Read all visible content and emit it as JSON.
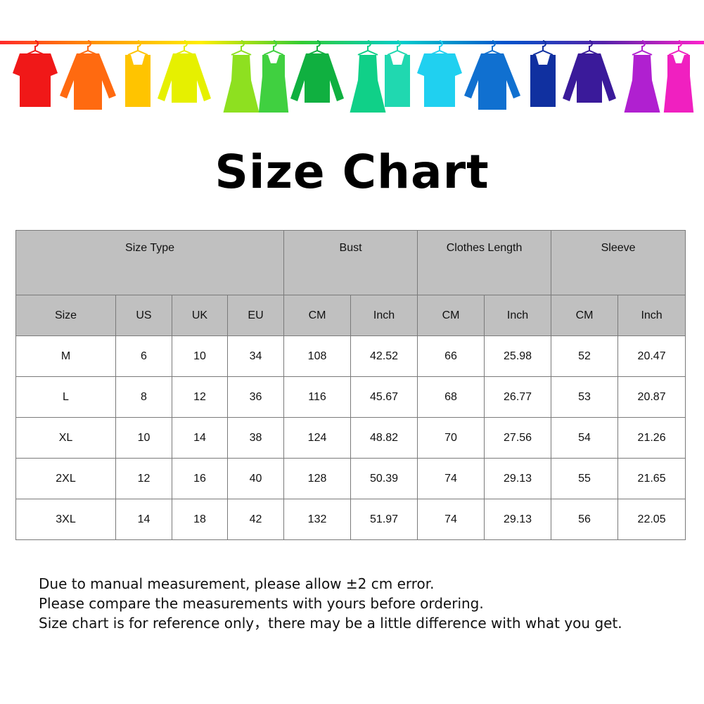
{
  "banner": {
    "rail_colors": [
      "#ff2a2a",
      "#ff9900",
      "#ffee00",
      "#33cc33",
      "#00cccc",
      "#0055cc",
      "#5522aa",
      "#ff22cc"
    ],
    "garments": [
      {
        "type": "tshirt",
        "color": "#f01818"
      },
      {
        "type": "shirt",
        "color": "#ff6a10"
      },
      {
        "type": "tank",
        "color": "#ffc400"
      },
      {
        "type": "sweater",
        "color": "#e6f000"
      },
      {
        "type": "dress",
        "color": "#8ee020"
      },
      {
        "type": "tankdress",
        "color": "#40d040"
      },
      {
        "type": "sweater",
        "color": "#10b040"
      },
      {
        "type": "dress",
        "color": "#10d088"
      },
      {
        "type": "tank",
        "color": "#20d8b0"
      },
      {
        "type": "tshirt",
        "color": "#20d0f0"
      },
      {
        "type": "shirt",
        "color": "#1070d0"
      },
      {
        "type": "tank",
        "color": "#1030a0"
      },
      {
        "type": "sweater",
        "color": "#3a1a9a"
      },
      {
        "type": "dress",
        "color": "#b020d0"
      },
      {
        "type": "tankdress",
        "color": "#f020c0"
      }
    ]
  },
  "title": "Size Chart",
  "table": {
    "group_headers": [
      "Size Type",
      "Bust",
      "Clothes Length",
      "Sleeve"
    ],
    "sub_headers": [
      "Size",
      "US",
      "UK",
      "EU",
      "CM",
      "Inch",
      "CM",
      "Inch",
      "CM",
      "Inch"
    ],
    "rows": [
      [
        "M",
        "6",
        "10",
        "34",
        "108",
        "42.52",
        "66",
        "25.98",
        "52",
        "20.47"
      ],
      [
        "L",
        "8",
        "12",
        "36",
        "116",
        "45.67",
        "68",
        "26.77",
        "53",
        "20.87"
      ],
      [
        "XL",
        "10",
        "14",
        "38",
        "124",
        "48.82",
        "70",
        "27.56",
        "54",
        "21.26"
      ],
      [
        "2XL",
        "12",
        "16",
        "40",
        "128",
        "50.39",
        "74",
        "29.13",
        "55",
        "21.65"
      ],
      [
        "3XL",
        "14",
        "18",
        "42",
        "132",
        "51.97",
        "74",
        "29.13",
        "56",
        "22.05"
      ]
    ]
  },
  "notes": [
    "Due to manual measurement, please allow ±2 cm error.",
    "Please compare the measurements with yours before ordering.",
    "Size chart is for reference only，there may be a little difference with what you get."
  ]
}
